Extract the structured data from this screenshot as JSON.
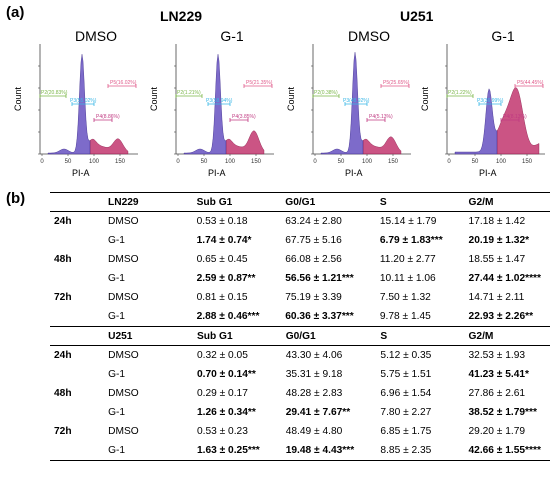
{
  "panel_a_label": "(a)",
  "panel_b_label": "(b)",
  "cell_lines": [
    "LN229",
    "U251"
  ],
  "histograms": [
    {
      "title": "DMSO",
      "gates": {
        "p2": "P2(20.83%)",
        "p3": "P3(55.02%)",
        "p4": "P4(8.86%)",
        "p5": "P5(16.02%)"
      },
      "style": "normal"
    },
    {
      "title": "G-1",
      "gates": {
        "p2": "P2(1.21%)",
        "p3": "P3(58.94%)",
        "p4": "P4(3.85%)",
        "p5": "P5(21.35%)"
      },
      "style": "normal"
    },
    {
      "title": "DMSO",
      "gates": {
        "p2": "P2(0.38%)",
        "p3": "P3(48.92%)",
        "p4": "P4(5.13%)",
        "p5": "P5(25.65%)"
      },
      "style": "normal"
    },
    {
      "title": "G-1",
      "gates": {
        "p2": "P2(1.22%)",
        "p3": "P3(36.99%)",
        "p4": "P4(8.13%)",
        "p5": "P5(44.45%)"
      },
      "style": "broad"
    }
  ],
  "axis": {
    "ylabel": "Count",
    "xlabel": "PI-A",
    "xticks": [
      "0",
      "50",
      "100",
      "150"
    ]
  },
  "colors": {
    "g1_peak": "#6f5bc4",
    "g2_region": "#c2366e",
    "gate_green": "#7ab648",
    "gate_cyan": "#38b6e6",
    "gate_pink": "#e05a8a",
    "gate_magenta": "#c03a82"
  },
  "tables": [
    {
      "header": [
        "LN229",
        "Sub G1",
        "G0/G1",
        "S",
        "G2/M"
      ],
      "rows": [
        {
          "time": "24h",
          "cond": "DMSO",
          "vals": [
            "0.53 ± 0.18",
            "63.24 ± 2.80",
            "15.14 ± 1.79",
            "17.18 ± 1.42"
          ],
          "bold": [
            false,
            false,
            false,
            false
          ]
        },
        {
          "time": "",
          "cond": "G-1",
          "vals": [
            "1.74 ± 0.74*",
            "67.75 ± 5.16",
            "6.79 ± 1.83***",
            "20.19 ± 1.32*"
          ],
          "bold": [
            true,
            false,
            true,
            true
          ]
        },
        {
          "time": "48h",
          "cond": "DMSO",
          "vals": [
            "0.65 ± 0.45",
            "66.08 ± 2.56",
            "11.20 ± 2.77",
            "18.55 ± 1.47"
          ],
          "bold": [
            false,
            false,
            false,
            false
          ]
        },
        {
          "time": "",
          "cond": "G-1",
          "vals": [
            "2.59 ± 0.87**",
            "56.56 ± 1.21***",
            "10.11 ± 1.06",
            "27.44 ± 1.02****"
          ],
          "bold": [
            true,
            true,
            false,
            true
          ]
        },
        {
          "time": "72h",
          "cond": "DMSO",
          "vals": [
            "0.81 ± 0.15",
            "75.19 ± 3.39",
            "7.50 ± 1.32",
            "14.71 ± 2.11"
          ],
          "bold": [
            false,
            false,
            false,
            false
          ]
        },
        {
          "time": "",
          "cond": "G-1",
          "vals": [
            "2.88 ± 0.46***",
            "60.36 ± 3.37***",
            "9.78 ± 1.45",
            "22.93 ± 2.26**"
          ],
          "bold": [
            true,
            true,
            false,
            true
          ]
        }
      ]
    },
    {
      "header": [
        "U251",
        "Sub G1",
        "G0/G1",
        "S",
        "G2/M"
      ],
      "rows": [
        {
          "time": "24h",
          "cond": "DMSO",
          "vals": [
            "0.32 ± 0.05",
            "43.30 ± 4.06",
            "5.12 ± 0.35",
            "32.53 ± 1.93"
          ],
          "bold": [
            false,
            false,
            false,
            false
          ]
        },
        {
          "time": "",
          "cond": "G-1",
          "vals": [
            "0.70 ± 0.14**",
            "35.31 ± 9.18",
            "5.75 ± 1.51",
            "41.23 ± 5.41*"
          ],
          "bold": [
            true,
            false,
            false,
            true
          ]
        },
        {
          "time": "48h",
          "cond": "DMSO",
          "vals": [
            "0.29 ± 0.17",
            "48.28 ± 2.83",
            "6.96 ± 1.54",
            "27.86 ± 2.61"
          ],
          "bold": [
            false,
            false,
            false,
            false
          ]
        },
        {
          "time": "",
          "cond": "G-1",
          "vals": [
            "1.26 ± 0.34**",
            "29.41 ± 7.67**",
            "7.80 ± 2.27",
            "38.52 ± 1.79***"
          ],
          "bold": [
            true,
            true,
            false,
            true
          ]
        },
        {
          "time": "72h",
          "cond": "DMSO",
          "vals": [
            "0.53 ± 0.23",
            "48.49 ± 4.80",
            "6.85 ± 1.75",
            "29.20 ± 1.79"
          ],
          "bold": [
            false,
            false,
            false,
            false
          ]
        },
        {
          "time": "",
          "cond": "G-1",
          "vals": [
            "1.63 ± 0.25***",
            "19.48 ± 4.43***",
            "8.85 ± 2.35",
            "42.66 ± 1.55****"
          ],
          "bold": [
            true,
            true,
            false,
            true
          ]
        }
      ]
    }
  ]
}
